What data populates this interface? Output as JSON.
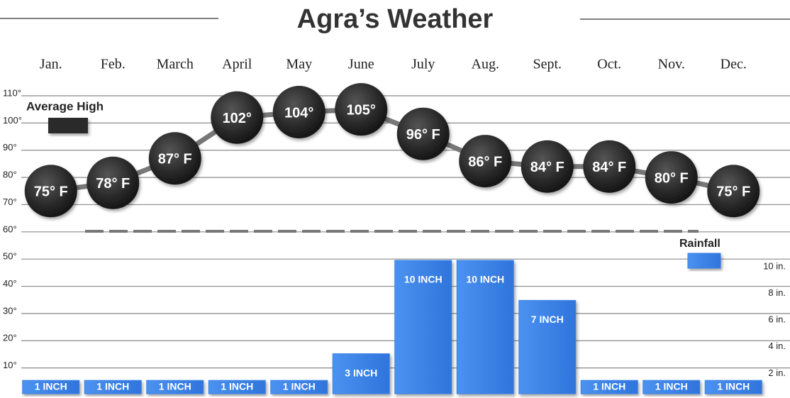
{
  "chart_data": {
    "type": "combo",
    "title": "Agra’s Weather",
    "categories": [
      "Jan.",
      "Feb.",
      "March",
      "April",
      "May",
      "June",
      "July",
      "Aug.",
      "Sept.",
      "Oct.",
      "Nov.",
      "Dec."
    ],
    "series": [
      {
        "name": "Average High",
        "type": "line",
        "color": "#2a2a2a",
        "values": [
          75,
          78,
          87,
          102,
          104,
          105,
          96,
          86,
          84,
          84,
          80,
          75
        ],
        "value_labels": [
          "75° F",
          "78° F",
          "87° F",
          "102°",
          "104°",
          "105°",
          "96° F",
          "86° F",
          "84° F",
          "84° F",
          "80° F",
          "75° F"
        ]
      },
      {
        "name": "Rainfall",
        "type": "bar",
        "axis": "y2",
        "color": "#3b82e6",
        "values": [
          1,
          1,
          1,
          1,
          1,
          3,
          10,
          10,
          7,
          1,
          1,
          1
        ],
        "value_labels": [
          "1 INCH",
          "1 INCH",
          "1 INCH",
          "1 INCH",
          "1 INCH",
          "3 INCH",
          "10 INCH",
          "10 INCH",
          "7 INCH",
          "1 INCH",
          "1 INCH",
          "1 INCH"
        ]
      }
    ],
    "ylim": [
      0,
      110
    ],
    "yticks": [
      {
        "value": 110,
        "label": "110°"
      },
      {
        "value": 100,
        "label": "100°"
      },
      {
        "value": 90,
        "label": "90°"
      },
      {
        "value": 80,
        "label": "80°"
      },
      {
        "value": 70,
        "label": "70°"
      },
      {
        "value": 60,
        "label": "60°"
      },
      {
        "value": 50,
        "label": "50°"
      },
      {
        "value": 40,
        "label": "40°"
      },
      {
        "value": 30,
        "label": "30°"
      },
      {
        "value": 20,
        "label": "20°"
      },
      {
        "value": 10,
        "label": "10°"
      }
    ],
    "y2lim": [
      0,
      10
    ],
    "y2ticks": [
      {
        "value": 10,
        "label": "10 in."
      },
      {
        "value": 8,
        "label": "8 in."
      },
      {
        "value": 6,
        "label": "6 in."
      },
      {
        "value": 4,
        "label": "4 in."
      },
      {
        "value": 2,
        "label": "2 in."
      }
    ],
    "grid": true
  }
}
